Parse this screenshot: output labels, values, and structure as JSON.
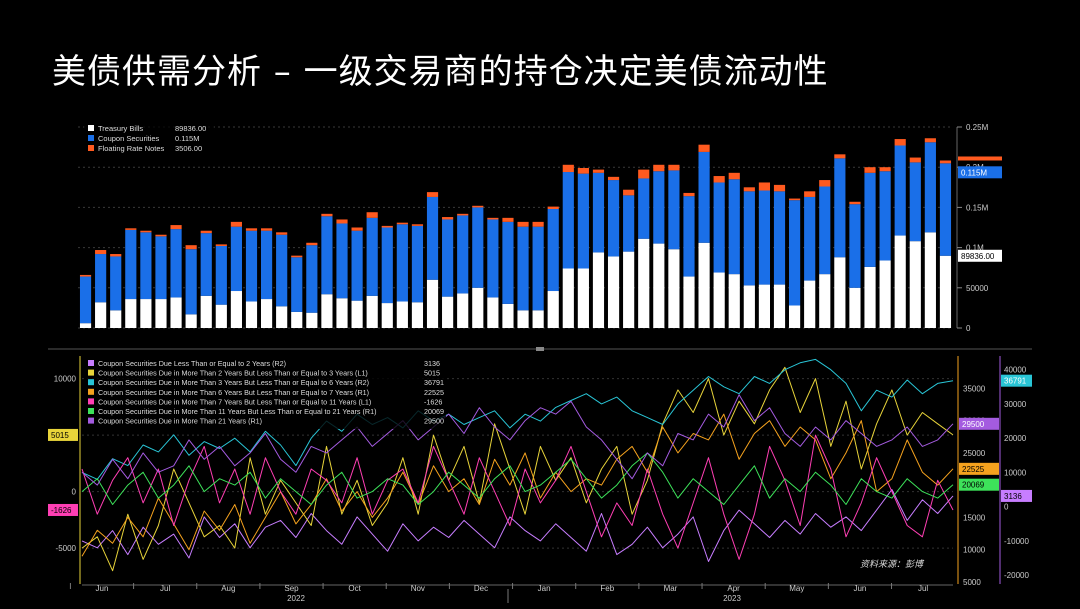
{
  "slide": {
    "title": "美债供需分析 – 一级交易商的持仓决定美债流动性",
    "source_note": "资料来源：彭博"
  },
  "chart_data": [
    {
      "type": "bar",
      "stacked": true,
      "title": "",
      "ylim": [
        0,
        250000
      ],
      "y_ticks": [
        0,
        50000,
        100000,
        150000,
        200000,
        250000
      ],
      "y_tick_labels": [
        "0",
        "50000",
        "0.1M",
        "0.15M",
        "0.2M",
        "0.25M"
      ],
      "last_values": {
        "Treasury Bills": "89836.00",
        "Coupon Securities": "0.115M",
        "Floating Rate Notes": "3506.00"
      },
      "series": [
        {
          "name": "Treasury Bills",
          "color": "#ffffff",
          "values": [
            6000,
            32000,
            22000,
            36000,
            36000,
            36000,
            38000,
            17000,
            40000,
            29000,
            46000,
            33000,
            36000,
            27000,
            20000,
            19000,
            42000,
            37000,
            34000,
            40000,
            31000,
            33000,
            32000,
            60000,
            39000,
            43000,
            50000,
            38000,
            30000,
            22000,
            22000,
            46000,
            74000,
            74000,
            94000,
            89000,
            95000,
            111000,
            105000,
            98000,
            64000,
            106000,
            69000,
            67000,
            53000,
            54000,
            54000,
            28000,
            59000,
            67000,
            88000,
            50000,
            76000,
            84000,
            115000,
            108000,
            119000,
            89836
          ]
        },
        {
          "name": "Coupon Securities",
          "color": "#1a6fe8",
          "values": [
            58000,
            60000,
            67000,
            86000,
            83000,
            78000,
            85000,
            81000,
            78000,
            73000,
            80000,
            88000,
            85000,
            89000,
            68000,
            84000,
            97000,
            93000,
            87000,
            97000,
            94000,
            96000,
            95000,
            103000,
            96000,
            97000,
            100000,
            97000,
            102000,
            104000,
            104000,
            102000,
            120000,
            118000,
            99000,
            95000,
            70000,
            75000,
            90000,
            98000,
            100000,
            113000,
            112000,
            118000,
            117000,
            117000,
            116000,
            131000,
            104000,
            109000,
            123000,
            104000,
            117000,
            111000,
            112000,
            98000,
            112000,
            115000
          ]
        },
        {
          "name": "Floating Rate Notes",
          "color": "#ff5a1f",
          "values": [
            2000,
            5000,
            3000,
            2000,
            2000,
            2000,
            5000,
            5000,
            3000,
            2000,
            6000,
            3000,
            3000,
            3000,
            2000,
            3000,
            3000,
            5000,
            4000,
            7000,
            2000,
            2000,
            2000,
            6000,
            3000,
            2000,
            2000,
            2000,
            5000,
            6000,
            6000,
            3000,
            9000,
            7000,
            4000,
            4000,
            7000,
            11000,
            8000,
            7000,
            4000,
            9000,
            8000,
            8000,
            5000,
            10000,
            8000,
            2000,
            7000,
            8000,
            5000,
            3000,
            7000,
            5000,
            8000,
            6000,
            5000,
            3506
          ]
        }
      ]
    },
    {
      "type": "line",
      "title": "",
      "x_labels": [
        "Jun",
        "Jul",
        "Aug",
        "Sep",
        "Oct",
        "Nov",
        "Dec",
        "Jan",
        "Feb",
        "Mar",
        "Apr",
        "May",
        "Jun",
        "Jul"
      ],
      "year_labels": [
        "2022",
        "2023"
      ],
      "left_axis": {
        "ylim": [
          -8000,
          12000
        ],
        "ticks": [
          10000,
          5000,
          0,
          -5000
        ],
        "tick_labels": [
          "10000",
          "5000",
          "0",
          "-5000"
        ]
      },
      "right_axis_1": {
        "ylim": [
          5000,
          40000
        ],
        "ticks": [
          35000,
          30000,
          25000,
          20000,
          15000,
          10000,
          5000
        ],
        "tick_labels": [
          "35000",
          "30000",
          "25000",
          "20000",
          "15000",
          "10000",
          "5000"
        ]
      },
      "right_axis_2": {
        "ylim": [
          -22000,
          44000
        ],
        "ticks": [
          40000,
          30000,
          20000,
          10000,
          0,
          -10000,
          -20000
        ],
        "tick_labels": [
          "40000",
          "30000",
          "20000",
          "10000",
          "0",
          "-10000",
          "-20000"
        ]
      },
      "series": [
        {
          "name": "Coupon Securities Due Less Than or Equal to 2 Years (R2)",
          "axis": "R2",
          "color": "#c77dff",
          "last": "3136",
          "values": [
            -10000,
            -12000,
            -7000,
            -14000,
            -6000,
            -11000,
            -8000,
            -15000,
            -3000,
            -9000,
            -5000,
            -12000,
            -6000,
            -4000,
            -9000,
            -2000,
            -7000,
            -11000,
            -3000,
            -8000,
            -13000,
            -5000,
            -10000,
            -6000,
            -9000,
            -4000,
            -8000,
            -12000,
            -3000,
            -7000,
            -10000,
            -5000,
            -9000,
            -13000,
            -2000,
            -14000,
            -11000,
            -6000,
            -12000,
            -8000,
            -3000,
            -16000,
            -7000,
            -1000,
            -5000,
            -9000,
            -4000,
            -8000,
            -2000,
            -6000,
            -3000,
            -7000,
            -1000,
            5000,
            -4000,
            2000,
            -2000,
            3136
          ]
        },
        {
          "name": "Coupon Securities Due in More Than 2 Years But Less Than or Equal to 3 Years (L1)",
          "axis": "L1",
          "color": "#e8d43a",
          "last": "5015",
          "values": [
            -5000,
            -4000,
            -7000,
            -2000,
            -6000,
            -3000,
            2000,
            -1000,
            -4000,
            -3000,
            -5000,
            3000,
            -2000,
            1000,
            -1000,
            -3000,
            4000,
            -2000,
            1000,
            -3000,
            -1000,
            3000,
            -2000,
            5000,
            1000,
            4000,
            -1000,
            6000,
            2000,
            -2000,
            4000,
            1000,
            3000,
            -1000,
            2000,
            4000,
            -2000,
            1000,
            6000,
            9000,
            7000,
            10000,
            5000,
            8000,
            6000,
            9000,
            11000,
            7000,
            10000,
            4000,
            8000,
            2000,
            6000,
            9000,
            5000,
            7000,
            6000,
            5015
          ]
        },
        {
          "name": "Coupon Securities Due in More Than 3 Years But Less Than or Equal to 6 Years (R2)",
          "axis": "R2",
          "color": "#29c5d6",
          "last": "36791",
          "values": [
            10000,
            8000,
            14000,
            12000,
            18000,
            16000,
            21000,
            15000,
            19000,
            17000,
            20000,
            16000,
            22000,
            18000,
            12000,
            20000,
            25000,
            22000,
            27000,
            24000,
            26000,
            23000,
            28000,
            25000,
            27000,
            24000,
            26000,
            28000,
            23000,
            27000,
            25000,
            29000,
            31000,
            33000,
            30000,
            32000,
            28000,
            26000,
            24000,
            30000,
            34000,
            38000,
            35000,
            33000,
            38000,
            36000,
            40000,
            42000,
            43000,
            40000,
            36000,
            28000,
            34000,
            32000,
            37000,
            33000,
            36000,
            36791
          ]
        },
        {
          "name": "Coupon Securities Due in More Than 6 Years But Less Than or Equal to 7 Years (R1)",
          "axis": "R1",
          "color": "#f5a21e",
          "last": "22525",
          "values": [
            9000,
            13000,
            11000,
            15000,
            12000,
            18000,
            14000,
            10000,
            16000,
            13000,
            17000,
            11000,
            15000,
            19000,
            14000,
            17000,
            21000,
            16000,
            19000,
            15000,
            18000,
            22000,
            17000,
            23000,
            19000,
            21000,
            17000,
            24000,
            20000,
            25000,
            18000,
            22000,
            19000,
            21000,
            20000,
            24000,
            26000,
            22000,
            29000,
            25000,
            28000,
            27000,
            31000,
            24000,
            28000,
            30000,
            26000,
            29000,
            27000,
            21000,
            25000,
            30000,
            19000,
            21000,
            27000,
            22000,
            20000,
            22525
          ]
        },
        {
          "name": "Coupon Securities Due in More Than 7 Years But Less Than or Equal to 11 Years (L1)",
          "axis": "L1",
          "color": "#ff3fb4",
          "last": "-1626",
          "values": [
            2000,
            -2000,
            1000,
            3000,
            -1000,
            2000,
            -3000,
            1000,
            4000,
            -1000,
            2000,
            -2000,
            3000,
            0,
            -2000,
            2000,
            1000,
            -1000,
            3000,
            -2000,
            1000,
            2000,
            -1000,
            4000,
            1000,
            -2000,
            3000,
            0,
            -3000,
            2000,
            -1000,
            1000,
            4000,
            0,
            -4000,
            -1000,
            -3000,
            2000,
            -2000,
            -5000,
            -1000,
            3000,
            -2000,
            -6000,
            -2000,
            4000,
            1000,
            -3000,
            5000,
            2000,
            -4000,
            -1000,
            3000,
            0,
            -3000,
            -4000,
            1000,
            -1626
          ]
        },
        {
          "name": "Coupon Securities Due in More Than 11 Years But Less Than or Equal to 21 Years (R1)",
          "axis": "R1",
          "color": "#3de25a",
          "last": "20069",
          "values": [
            19000,
            21000,
            17000,
            20000,
            22000,
            18000,
            20000,
            23000,
            19000,
            21000,
            20000,
            22000,
            18000,
            21000,
            19000,
            17000,
            20000,
            22000,
            18000,
            19000,
            21000,
            20000,
            17000,
            19000,
            22000,
            20000,
            18000,
            21000,
            23000,
            19000,
            20000,
            22000,
            24000,
            21000,
            18000,
            20000,
            23000,
            25000,
            22000,
            18000,
            21000,
            19000,
            17000,
            20000,
            23000,
            18000,
            21000,
            19000,
            22000,
            20000,
            17000,
            21000,
            19000,
            18000,
            21000,
            19000,
            18000,
            20069
          ]
        },
        {
          "name": "Coupon Securities Due in More Than 21 Years (R1)",
          "axis": "R1",
          "color": "#a45be0",
          "last": "29500",
          "values": [
            22000,
            20000,
            24000,
            21000,
            25000,
            22000,
            23000,
            27000,
            24000,
            26000,
            23000,
            25000,
            28000,
            24000,
            22000,
            26000,
            25000,
            27000,
            29000,
            26000,
            28000,
            30000,
            27000,
            29000,
            31000,
            28000,
            32000,
            29000,
            27000,
            30000,
            32000,
            31000,
            33000,
            29000,
            27000,
            24000,
            21000,
            25000,
            23000,
            28000,
            27000,
            31000,
            29000,
            34000,
            30000,
            32000,
            28000,
            26000,
            29000,
            27000,
            30000,
            28000,
            26000,
            27000,
            29000,
            26000,
            27000,
            29500
          ]
        }
      ]
    }
  ]
}
